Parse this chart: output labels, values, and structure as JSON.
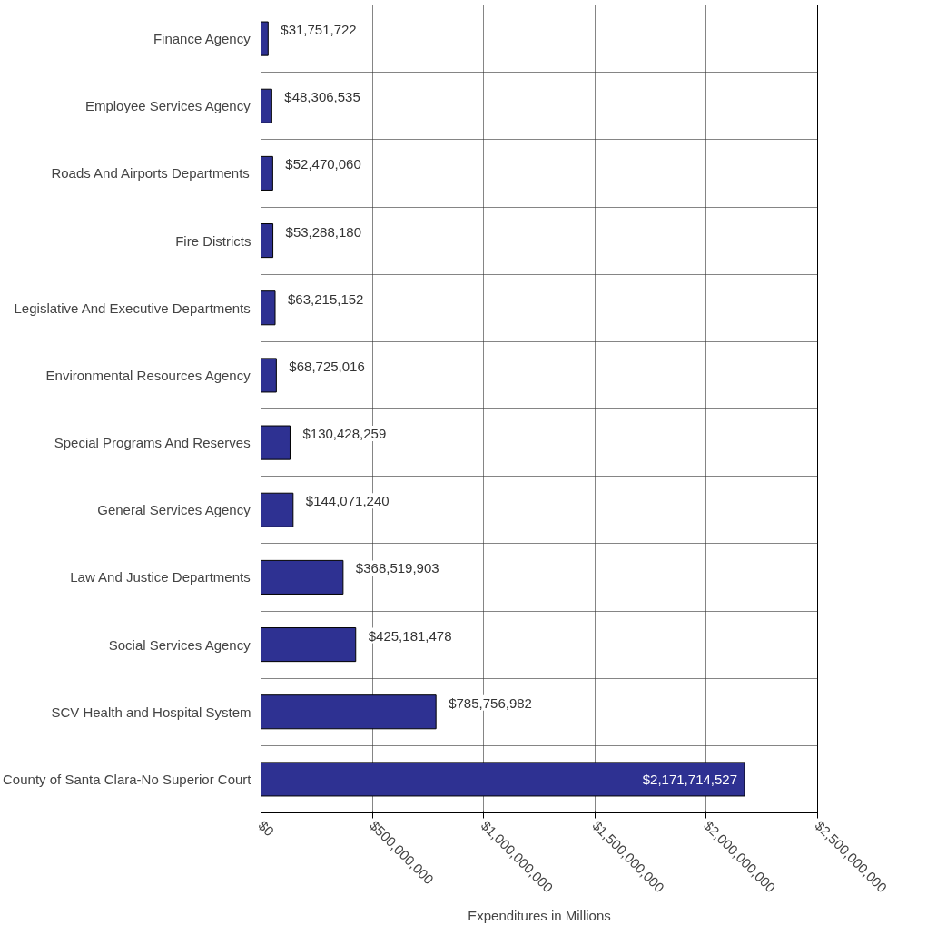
{
  "chart_data": {
    "type": "bar",
    "orientation": "horizontal",
    "xlabel": "Expenditures in Millions",
    "categories": [
      "Finance Agency",
      "Employee Services Agency",
      "Roads And Airports Departments",
      "Fire Districts",
      "Legislative And Executive Departments",
      "Environmental Resources Agency",
      "Special Programs And Reserves",
      "General Services Agency",
      "Law And Justice Departments",
      "Social Services Agency",
      "SCV Health and Hospital System",
      "County of Santa Clara-No Superior Court"
    ],
    "values": [
      31751722,
      48306535,
      52470060,
      53288180,
      63215152,
      68725016,
      130428259,
      144071240,
      368519903,
      425181478,
      785756982,
      2171714527
    ],
    "value_labels": [
      "$31,751,722",
      "$48,306,535",
      "$52,470,060",
      "$53,288,180",
      "$63,215,152",
      "$68,725,016",
      "$130,428,259",
      "$144,071,240",
      "$368,519,903",
      "$425,181,478",
      "$785,756,982",
      "$2,171,714,527"
    ],
    "color": "#2e3192",
    "xlim": [
      0,
      2500000000
    ],
    "xticks": [
      {
        "value": 0,
        "label": "$0"
      },
      {
        "value": 500000000,
        "label": "$500,000,000"
      },
      {
        "value": 1000000000,
        "label": "$1,000,000,000"
      },
      {
        "value": 1500000000,
        "label": "$1,500,000,000"
      },
      {
        "value": 2000000000,
        "label": "$2,000,000,000"
      },
      {
        "value": 2500000000,
        "label": "$2,500,000,000"
      }
    ],
    "grid": true
  }
}
